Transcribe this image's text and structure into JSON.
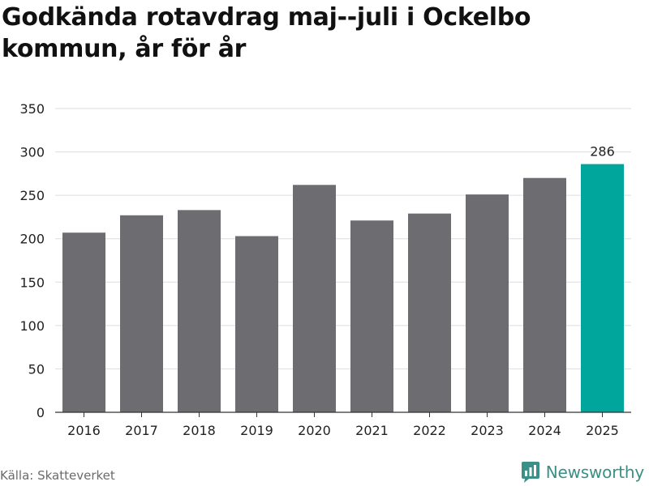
{
  "title": "Godkända rotavdrag maj--juli i Ockelbo kommun, år för år",
  "source": "Källa: Skatteverket",
  "brand": {
    "name": "Newsworthy",
    "icon": "newsworthy-logo-icon",
    "color": "#3a8f86"
  },
  "colors": {
    "bar": "#6d6c71",
    "highlight": "#00a59b",
    "grid": "#dddddd",
    "axis": "#333333",
    "text": "#222222"
  },
  "chart_data": {
    "type": "bar",
    "title": "Godkända rotavdrag maj--juli i Ockelbo kommun, år för år",
    "categories": [
      "2016",
      "2017",
      "2018",
      "2019",
      "2020",
      "2021",
      "2022",
      "2023",
      "2024",
      "2025"
    ],
    "values": [
      207,
      227,
      233,
      203,
      262,
      221,
      229,
      251,
      270,
      286
    ],
    "highlight_index": 9,
    "data_labels": [
      {
        "index": 9,
        "text": "286"
      }
    ],
    "ylim": [
      0,
      350
    ],
    "yticks": [
      0,
      50,
      100,
      150,
      200,
      250,
      300,
      350
    ],
    "xlabel": "",
    "ylabel": "",
    "grid": true,
    "legend": "none"
  }
}
